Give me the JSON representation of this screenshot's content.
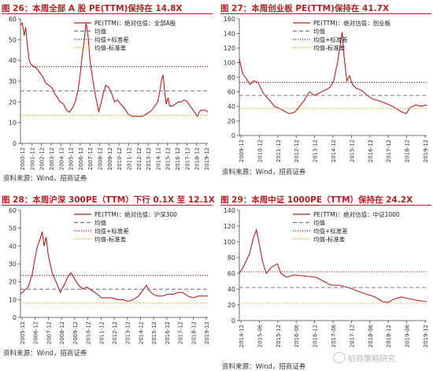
{
  "chart_data": [
    {
      "type": "line",
      "title": "图 26：本周全部 A 股 PE(TTM)保持在 14.8X",
      "source": "资料来源：Wind，招商证券",
      "ylim": [
        0,
        60
      ],
      "yticks": [
        0,
        10,
        20,
        30,
        40,
        50,
        60
      ],
      "x_start": 2000.92,
      "x_end": 2020.0,
      "x_tick_labels": [
        "2000-12",
        "2001-12",
        "2002-12",
        "2003-12",
        "2004-12",
        "2005-12",
        "2006-12",
        "2007-12",
        "2008-12",
        "2009-12",
        "2010-12",
        "2011-12",
        "2012-12",
        "2013-12",
        "2014-12",
        "2015-12",
        "2016-12",
        "2017-12",
        "2018-12",
        "2019-12"
      ],
      "legend": {
        "placement": "top-right"
      },
      "series": [
        {
          "name": "PE(TTM)：绝对估值：全部A股",
          "style": "solid",
          "color": "#b22222",
          "x": [
            2000.92,
            2001.1,
            2001.3,
            2001.45,
            2001.6,
            2001.8,
            2002.0,
            2002.3,
            2002.6,
            2002.9,
            2003.2,
            2003.5,
            2003.8,
            2004.1,
            2004.4,
            2004.7,
            2004.95,
            2005.3,
            2005.6,
            2005.9,
            2006.2,
            2006.5,
            2006.8,
            2007.0,
            2007.2,
            2007.4,
            2007.6,
            2007.8,
            2008.0,
            2008.3,
            2008.6,
            2008.9,
            2009.1,
            2009.4,
            2009.6,
            2009.9,
            2010.2,
            2010.5,
            2010.8,
            2011.1,
            2011.5,
            2011.9,
            2012.3,
            2012.7,
            2012.95,
            2013.3,
            2013.7,
            2014.0,
            2014.3,
            2014.6,
            2014.9,
            2015.1,
            2015.3,
            2015.45,
            2015.6,
            2015.75,
            2015.95,
            2016.1,
            2016.4,
            2016.7,
            2017.0,
            2017.3,
            2017.6,
            2017.9,
            2018.2,
            2018.5,
            2018.8,
            2018.95,
            2019.1,
            2019.3,
            2019.6,
            2019.8,
            2020.0
          ],
          "values": [
            57,
            58,
            52,
            56,
            48,
            40,
            38,
            37,
            36,
            34,
            32,
            29,
            28,
            27,
            24,
            22,
            20,
            19,
            16,
            15,
            17,
            20,
            26,
            33,
            42,
            49,
            58,
            52,
            40,
            30,
            22,
            15,
            19,
            25,
            28,
            27,
            24,
            20,
            21,
            19,
            17,
            14,
            13,
            13,
            13,
            13,
            14,
            15,
            16,
            18,
            20,
            25,
            31,
            33,
            25,
            19,
            22,
            18,
            18,
            19,
            20,
            20,
            21,
            20,
            18,
            16,
            14,
            13,
            15,
            16,
            16,
            16,
            15
          ]
        },
        {
          "name": "均值",
          "style": "dashed",
          "color": "#777777",
          "value": 25.3
        },
        {
          "name": "均值+标准差",
          "style": "dotted",
          "color": "#8b1a1a",
          "value": 37.0
        },
        {
          "name": "均值-标准差",
          "style": "dotted",
          "color": "#e0a800",
          "value": 13.5
        }
      ]
    },
    {
      "type": "line",
      "title": "图 27：本周创业板 PE(TTM)保持在 41.7X",
      "source": "资料来源：Wind，招商证券",
      "ylim": [
        0,
        160
      ],
      "yticks": [
        0,
        20,
        40,
        60,
        80,
        100,
        120,
        140,
        160
      ],
      "x_start": 2009.92,
      "x_end": 2020.0,
      "x_tick_labels": [
        "2009-12",
        "2010-12",
        "2011-12",
        "2012-12",
        "2013-12",
        "2014-12",
        "2015-12",
        "2016-12",
        "2017-12",
        "2018-12",
        "2019-12"
      ],
      "legend": {
        "placement": "top-right"
      },
      "series": [
        {
          "name": "PE(TTM)：绝对估值：创业板",
          "style": "solid",
          "color": "#b22222",
          "x": [
            2009.92,
            2010.1,
            2010.3,
            2010.5,
            2010.7,
            2010.95,
            2011.2,
            2011.5,
            2011.8,
            2012.0,
            2012.3,
            2012.6,
            2012.9,
            2013.1,
            2013.4,
            2013.7,
            2013.95,
            2014.2,
            2014.5,
            2014.8,
            2015.0,
            2015.2,
            2015.35,
            2015.45,
            2015.55,
            2015.7,
            2015.85,
            2016.0,
            2016.2,
            2016.5,
            2016.8,
            2017.1,
            2017.4,
            2017.7,
            2018.0,
            2018.3,
            2018.6,
            2018.9,
            2019.1,
            2019.4,
            2019.7,
            2020.0
          ],
          "values": [
            105,
            85,
            78,
            70,
            75,
            72,
            58,
            50,
            40,
            38,
            34,
            30,
            32,
            38,
            48,
            60,
            55,
            58,
            62,
            66,
            75,
            100,
            125,
            142,
            110,
            75,
            82,
            70,
            65,
            62,
            55,
            50,
            48,
            45,
            42,
            38,
            33,
            30,
            38,
            42,
            40,
            42
          ]
        },
        {
          "name": "均值",
          "style": "dashed",
          "color": "#777777",
          "value": 55.0
        },
        {
          "name": "均值+标准差",
          "style": "dotted",
          "color": "#8b1a1a",
          "value": 73.0
        },
        {
          "name": "均值-标准差",
          "style": "dotted",
          "color": "#e0a800",
          "value": 37.0
        }
      ]
    },
    {
      "type": "line",
      "title": "图 28：本周沪深 300PE（TTM）下行 0.1X 至 12.1X",
      "source": "资料来源：Wind，招商证券",
      "ylim": [
        0,
        60
      ],
      "yticks": [
        0,
        10,
        20,
        30,
        40,
        50,
        60
      ],
      "x_start": 2005.92,
      "x_end": 2020.0,
      "x_tick_labels": [
        "2005-12",
        "2006-12",
        "2007-12",
        "2008-12",
        "2009-12",
        "2010-12",
        "2011-12",
        "2012-12",
        "2013-12",
        "2014-12",
        "2015-12",
        "2016-12",
        "2017-12",
        "2018-12",
        "2019-12"
      ],
      "legend": {
        "placement": "top-right"
      },
      "series": [
        {
          "name": "PE(TTM)：绝对估值：沪深300",
          "style": "solid",
          "color": "#b22222",
          "x": [
            2005.92,
            2006.2,
            2006.5,
            2006.8,
            2007.0,
            2007.2,
            2007.4,
            2007.55,
            2007.7,
            2007.85,
            2008.0,
            2008.3,
            2008.6,
            2008.9,
            2009.2,
            2009.5,
            2009.7,
            2009.95,
            2010.3,
            2010.6,
            2010.9,
            2011.3,
            2011.7,
            2012.0,
            2012.4,
            2012.8,
            2013.2,
            2013.6,
            2014.0,
            2014.4,
            2014.8,
            2015.1,
            2015.4,
            2015.6,
            2015.9,
            2016.2,
            2016.6,
            2017.0,
            2017.4,
            2017.8,
            2018.1,
            2018.5,
            2018.9,
            2019.3,
            2019.7,
            2020.0
          ],
          "values": [
            13,
            15,
            17,
            24,
            33,
            40,
            44,
            48,
            40,
            45,
            35,
            25,
            20,
            14,
            18,
            23,
            25,
            22,
            18,
            16,
            17,
            15,
            13,
            11,
            11,
            11,
            10,
            10,
            9,
            10,
            12,
            15,
            18,
            15,
            13,
            12,
            12,
            13,
            13,
            14,
            14,
            12,
            11,
            12,
            12,
            12
          ]
        },
        {
          "name": "均值",
          "style": "dashed",
          "color": "#777777",
          "value": 15.8
        },
        {
          "name": "均值+标准差",
          "style": "dotted",
          "color": "#8b1a1a",
          "value": 23.5
        },
        {
          "name": "均值-标准差",
          "style": "dotted",
          "color": "#e0a800",
          "value": 8.2
        }
      ]
    },
    {
      "type": "line",
      "title": "图 29：本周中证 1000PE（TTM）保持在 24.2X",
      "source": "资料来源：Wind，招商证券",
      "ylim": [
        0,
        140
      ],
      "yticks": [
        0,
        20,
        40,
        60,
        80,
        100,
        120,
        140
      ],
      "x_start": 2014.92,
      "x_end": 2020.0,
      "x_tick_labels": [
        "2014-12",
        "2015-06",
        "2015-12",
        "2016-06",
        "2016-12",
        "2017-06",
        "2017-12",
        "2018-06",
        "2018-12",
        "2019-06",
        "2019-12"
      ],
      "legend": {
        "placement": "top-right"
      },
      "series": [
        {
          "name": "PE(TTM)：绝对估值：中证1000",
          "style": "solid",
          "color": "#b22222",
          "x": [
            2014.92,
            2015.05,
            2015.2,
            2015.3,
            2015.38,
            2015.45,
            2015.55,
            2015.65,
            2015.8,
            2015.95,
            2016.05,
            2016.2,
            2016.4,
            2016.6,
            2016.8,
            2017.0,
            2017.2,
            2017.4,
            2017.6,
            2017.8,
            2018.0,
            2018.2,
            2018.4,
            2018.6,
            2018.8,
            2018.95,
            2019.1,
            2019.3,
            2019.5,
            2019.7,
            2019.85,
            2020.0
          ],
          "values": [
            60,
            70,
            85,
            105,
            115,
            100,
            75,
            60,
            68,
            72,
            60,
            55,
            58,
            57,
            56,
            55,
            50,
            45,
            45,
            43,
            40,
            36,
            33,
            30,
            24,
            23,
            27,
            30,
            28,
            26,
            25,
            24
          ]
        },
        {
          "name": "均值",
          "style": "dashed",
          "color": "#777777",
          "value": 42.0
        },
        {
          "name": "均值+标准差",
          "style": "dotted",
          "color": "#8b1a1a",
          "value": 62.0
        },
        {
          "name": "均值-标准差",
          "style": "dotted",
          "color": "#e0a800",
          "value": 22.0
        }
      ]
    }
  ],
  "watermark": "招商策略研究"
}
